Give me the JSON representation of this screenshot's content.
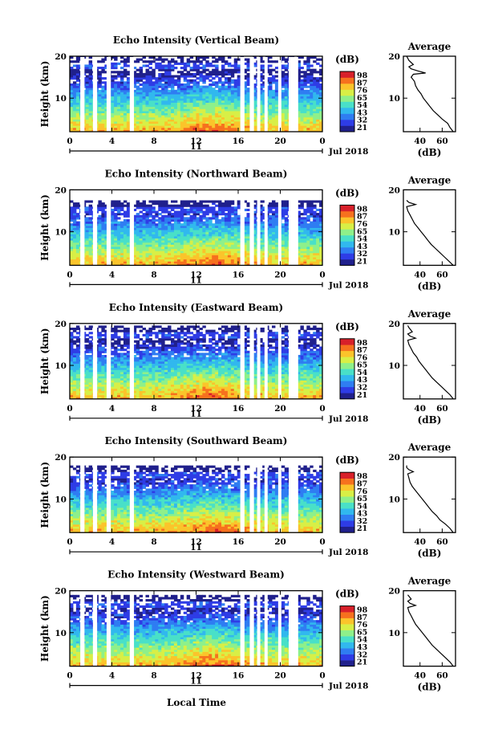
{
  "chart_data": [
    {
      "type": "heatmap",
      "title": "Echo Intensity (Vertical Beam)",
      "ylabel": "Height (km)",
      "ylim": [
        2,
        20
      ],
      "yticks": [
        "20",
        "10"
      ],
      "xticks": [
        "0",
        "4",
        "8",
        "12",
        "16",
        "20",
        "0"
      ],
      "xlim": [
        0,
        24
      ],
      "date_day": "11",
      "date_month": "Jul 2018",
      "colorbar_unit": "(dB)",
      "colorbar_ticks": [
        "98",
        "87",
        "76",
        "65",
        "54",
        "43",
        "32",
        "21"
      ],
      "data_gaps_hours": [
        [
          1.0,
          1.4
        ],
        [
          2.2,
          2.6
        ],
        [
          3.5,
          3.9
        ],
        [
          5.7,
          6.1
        ],
        [
          16.2,
          16.6
        ],
        [
          17.1,
          17.5
        ],
        [
          17.8,
          18.1
        ],
        [
          18.5,
          18.8
        ],
        [
          19.8,
          20.1
        ],
        [
          20.8,
          21.7
        ]
      ],
      "top_limit_km": 20,
      "profile": {
        "title": "Average",
        "xlabel": "(dB)",
        "xticks": [
          "40",
          "60"
        ],
        "yticks": [
          "20",
          "10"
        ],
        "xlim": [
          25,
          72
        ],
        "heights_km": [
          2,
          3,
          4,
          5,
          6,
          7,
          8,
          9,
          10,
          11,
          12,
          13,
          14,
          15,
          15.7,
          16,
          16.5,
          17,
          17.5,
          18,
          19,
          20
        ],
        "values_db": [
          70,
          67,
          65,
          60,
          56,
          52,
          49,
          46,
          43,
          41,
          38,
          36,
          35,
          32,
          34,
          45,
          38,
          32,
          30,
          34,
          30,
          28
        ]
      }
    },
    {
      "type": "heatmap",
      "title": "Echo Intensity (Northward Beam)",
      "ylabel": "Height (km)",
      "ylim": [
        2,
        20
      ],
      "yticks": [
        "20",
        "10"
      ],
      "xticks": [
        "0",
        "4",
        "8",
        "12",
        "16",
        "20",
        "0"
      ],
      "xlim": [
        0,
        24
      ],
      "date_day": "11",
      "date_month": "Jul 2018",
      "colorbar_unit": "(dB)",
      "colorbar_ticks": [
        "98",
        "87",
        "76",
        "65",
        "54",
        "43",
        "32",
        "21"
      ],
      "data_gaps_hours": [
        [
          1.0,
          1.4
        ],
        [
          2.2,
          2.6
        ],
        [
          3.5,
          3.9
        ],
        [
          5.7,
          6.1
        ],
        [
          16.2,
          16.6
        ],
        [
          17.1,
          17.5
        ],
        [
          17.8,
          18.1
        ],
        [
          18.5,
          18.8
        ],
        [
          19.8,
          20.1
        ],
        [
          20.8,
          21.7
        ]
      ],
      "top_limit_km": 17.5,
      "profile": {
        "title": "Average",
        "xlabel": "(dB)",
        "xticks": [
          "40",
          "60"
        ],
        "yticks": [
          "20",
          "10"
        ],
        "xlim": [
          25,
          72
        ],
        "heights_km": [
          2,
          3,
          4,
          5,
          6,
          7,
          8,
          9,
          10,
          11,
          12,
          13,
          14,
          15,
          16,
          16.5,
          17,
          17.5
        ],
        "values_db": [
          70,
          66,
          62,
          58,
          54,
          50,
          47,
          44,
          41,
          38,
          35,
          33,
          31,
          29,
          28,
          36,
          30,
          28
        ]
      }
    },
    {
      "type": "heatmap",
      "title": "Echo Intensity (Eastward Beam)",
      "ylabel": "Height (km)",
      "ylim": [
        2,
        20
      ],
      "yticks": [
        "20",
        "10"
      ],
      "xticks": [
        "0",
        "4",
        "8",
        "12",
        "16",
        "20",
        "0"
      ],
      "xlim": [
        0,
        24
      ],
      "date_day": "11",
      "date_month": "Jul 2018",
      "colorbar_unit": "(dB)",
      "colorbar_ticks": [
        "98",
        "87",
        "76",
        "65",
        "54",
        "43",
        "32",
        "21"
      ],
      "data_gaps_hours": [
        [
          1.0,
          1.4
        ],
        [
          2.2,
          2.6
        ],
        [
          3.5,
          3.9
        ],
        [
          5.7,
          6.1
        ],
        [
          16.2,
          16.6
        ],
        [
          17.1,
          17.5
        ],
        [
          17.8,
          18.1
        ],
        [
          18.5,
          18.8
        ],
        [
          19.8,
          20.1
        ],
        [
          20.8,
          21.7
        ]
      ],
      "top_limit_km": 19.5,
      "profile": {
        "title": "Average",
        "xlabel": "(dB)",
        "xticks": [
          "40",
          "60"
        ],
        "yticks": [
          "20",
          "10"
        ],
        "xlim": [
          25,
          72
        ],
        "heights_km": [
          2,
          3,
          4,
          5,
          6,
          7,
          8,
          9,
          10,
          11,
          12,
          13,
          14,
          15,
          16,
          16.5,
          17,
          17.5,
          18,
          19,
          19.5
        ],
        "values_db": [
          70,
          67,
          63,
          59,
          55,
          51,
          48,
          45,
          42,
          39,
          37,
          34,
          32,
          30,
          29,
          36,
          31,
          29,
          33,
          30,
          29
        ]
      }
    },
    {
      "type": "heatmap",
      "title": "Echo Intensity (Southward Beam)",
      "ylabel": "Height (km)",
      "ylim": [
        2,
        20
      ],
      "yticks": [
        "20",
        "10"
      ],
      "xticks": [
        "0",
        "4",
        "8",
        "12",
        "16",
        "20",
        "0"
      ],
      "xlim": [
        0,
        24
      ],
      "date_day": "11",
      "date_month": "Jul 2018",
      "colorbar_unit": "(dB)",
      "colorbar_ticks": [
        "98",
        "87",
        "76",
        "65",
        "54",
        "43",
        "32",
        "21"
      ],
      "data_gaps_hours": [
        [
          1.0,
          1.4
        ],
        [
          2.2,
          2.6
        ],
        [
          3.5,
          3.9
        ],
        [
          5.7,
          6.1
        ],
        [
          16.2,
          16.6
        ],
        [
          17.1,
          17.5
        ],
        [
          17.8,
          18.1
        ],
        [
          18.5,
          18.8
        ],
        [
          19.8,
          20.1
        ],
        [
          20.8,
          21.7
        ]
      ],
      "top_limit_km": 18,
      "profile": {
        "title": "Average",
        "xlabel": "(dB)",
        "xticks": [
          "40",
          "60"
        ],
        "yticks": [
          "20",
          "10"
        ],
        "xlim": [
          25,
          72
        ],
        "heights_km": [
          2,
          3,
          4,
          5,
          6,
          7,
          8,
          9,
          10,
          11,
          12,
          13,
          14,
          15,
          16,
          16.5,
          17,
          17.5,
          18
        ],
        "values_db": [
          70,
          67,
          63,
          58,
          55,
          51,
          48,
          45,
          42,
          39,
          36,
          33,
          31,
          30,
          29,
          34,
          30,
          28,
          28
        ]
      }
    },
    {
      "type": "heatmap",
      "title": "Echo Intensity (Westward Beam)",
      "ylabel": "Height (km)",
      "ylim": [
        2,
        20
      ],
      "yticks": [
        "20",
        "10"
      ],
      "xticks": [
        "0",
        "4",
        "8",
        "12",
        "16",
        "20",
        "0"
      ],
      "xlim": [
        0,
        24
      ],
      "date_day": "11",
      "date_month": "Jul 2018",
      "colorbar_unit": "(dB)",
      "colorbar_ticks": [
        "98",
        "87",
        "76",
        "65",
        "54",
        "43",
        "32",
        "21"
      ],
      "data_gaps_hours": [
        [
          1.0,
          1.4
        ],
        [
          2.2,
          2.6
        ],
        [
          3.5,
          3.9
        ],
        [
          5.7,
          6.1
        ],
        [
          16.2,
          16.6
        ],
        [
          17.1,
          17.5
        ],
        [
          17.8,
          18.1
        ],
        [
          18.5,
          18.8
        ],
        [
          19.8,
          20.1
        ],
        [
          20.8,
          21.7
        ]
      ],
      "top_limit_km": 19,
      "profile": {
        "title": "Average",
        "xlabel": "(dB)",
        "xticks": [
          "40",
          "60"
        ],
        "yticks": [
          "20",
          "10"
        ],
        "xlim": [
          25,
          72
        ],
        "heights_km": [
          2,
          3,
          4,
          5,
          6,
          7,
          8,
          9,
          10,
          11,
          12,
          13,
          14,
          15,
          16,
          16.5,
          17,
          17.5,
          18,
          19
        ],
        "values_db": [
          70,
          67,
          63,
          59,
          55,
          51,
          48,
          45,
          42,
          39,
          36,
          34,
          32,
          30,
          29,
          36,
          31,
          29,
          32,
          29
        ]
      }
    }
  ],
  "xlabel": "Local Time",
  "colormap": [
    "#20208c",
    "#2e3ce6",
    "#2f7df2",
    "#31b8ee",
    "#49e0c8",
    "#8ef08a",
    "#d8ef46",
    "#fbc42b",
    "#f6711e",
    "#d8202a"
  ]
}
